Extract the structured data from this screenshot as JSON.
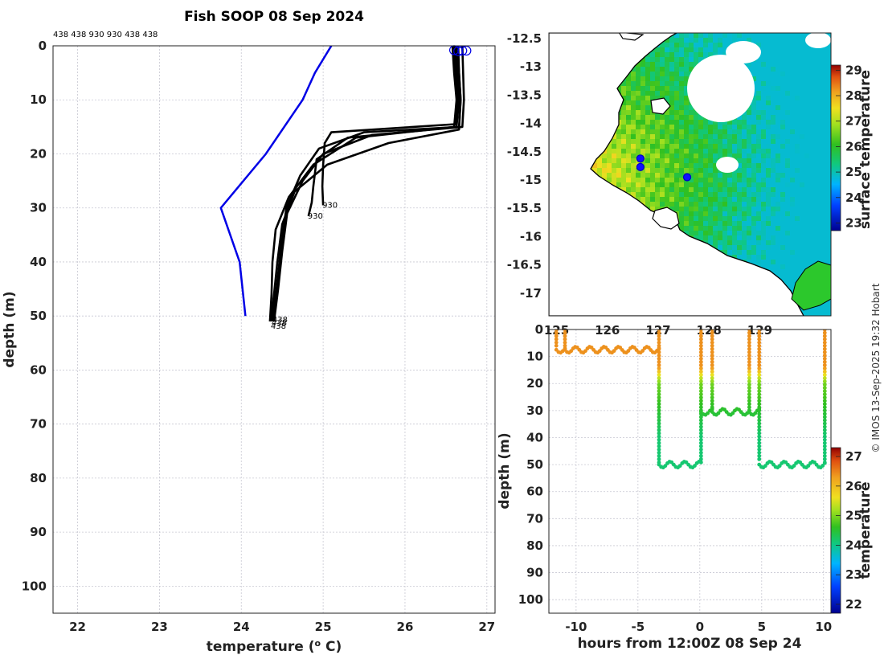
{
  "chart_data": [
    {
      "id": "profile",
      "type": "line",
      "title": "Fish SOOP 08 Sep 2024",
      "xlabel": "temperature (",
      "xlabel_sup": "o",
      "xlabel_unit": " C)",
      "ylabel": "depth (m)",
      "xlim": [
        21.7,
        27.1
      ],
      "ylim": [
        105,
        0
      ],
      "xticks": [
        22,
        23,
        24,
        25,
        26,
        27
      ],
      "yticks": [
        0,
        10,
        20,
        30,
        40,
        50,
        60,
        70,
        80,
        90,
        100
      ],
      "grid": true,
      "top_labels": "438 438 930 930 438 438",
      "climatology_color": "#0000e6",
      "climatology": {
        "temperature": [
          25.1,
          24.9,
          24.75,
          24.3,
          23.75,
          23.98,
          24.05
        ],
        "depth": [
          0,
          5,
          10,
          20,
          30,
          40,
          50
        ]
      },
      "profiles": [
        {
          "id": "438",
          "temperature": [
            26.65,
            26.66,
            26.68,
            26.66,
            25.5,
            24.95,
            24.72,
            24.55,
            24.48,
            24.43,
            24.38
          ],
          "depth": [
            0,
            5,
            10,
            15,
            16,
            19,
            24,
            30,
            38,
            45,
            51
          ]
        },
        {
          "id": "438",
          "temperature": [
            26.7,
            26.71,
            26.72,
            26.7,
            25.6,
            25.0,
            24.75,
            24.56,
            24.5,
            24.45,
            24.4
          ],
          "depth": [
            0,
            5,
            10,
            15,
            16.5,
            20,
            25,
            31,
            38,
            45,
            51
          ]
        },
        {
          "id": "930",
          "temperature": [
            26.6,
            26.62,
            26.64,
            26.62,
            25.1,
            25.02,
            25.0,
            24.99,
            25.0
          ],
          "depth": [
            0,
            5,
            10,
            14.5,
            16,
            18,
            22,
            26,
            29.5
          ]
        },
        {
          "id": "930",
          "temperature": [
            26.62,
            26.64,
            26.66,
            26.63,
            25.3,
            24.92,
            24.88,
            24.86,
            24.82
          ],
          "depth": [
            0,
            5,
            10,
            15,
            17,
            21,
            26,
            29,
            31.5
          ]
        },
        {
          "id": "438",
          "temperature": [
            26.58,
            26.6,
            26.63,
            26.6,
            25.4,
            24.88,
            24.58,
            24.42,
            24.38,
            24.37,
            24.35
          ],
          "depth": [
            0,
            5,
            10,
            15,
            17,
            22,
            28,
            34,
            40,
            46,
            51
          ]
        },
        {
          "id": "438",
          "temperature": [
            26.64,
            26.66,
            26.68,
            26.66,
            25.8,
            25.05,
            24.65,
            24.5,
            24.44,
            24.4,
            24.36
          ],
          "depth": [
            0,
            5,
            10,
            15.5,
            18,
            22,
            27,
            33,
            40,
            46,
            51
          ]
        }
      ],
      "end_labels": [
        {
          "text": "930",
          "temperature": 24.98,
          "depth": 29.5
        },
        {
          "text": "930",
          "temperature": 24.8,
          "depth": 31.5
        },
        {
          "text": "438",
          "temperature": 24.37,
          "depth": 50.7
        },
        {
          "text": "438",
          "temperature": 24.36,
          "depth": 51.3
        },
        {
          "text": "438",
          "temperature": 24.35,
          "depth": 51.9
        }
      ],
      "surface_markers": [
        {
          "temperature": 26.6,
          "depth": 0.8
        },
        {
          "temperature": 26.65,
          "depth": 1.0
        },
        {
          "temperature": 26.7,
          "depth": 0.9
        },
        {
          "temperature": 26.75,
          "depth": 0.9
        }
      ]
    },
    {
      "id": "map",
      "type": "heatmap",
      "xlim": [
        124.85,
        130.4
      ],
      "ylim": [
        -17.4,
        -12.4
      ],
      "xticks": [
        125,
        126,
        127,
        128,
        129
      ],
      "yticks": [
        -12.5,
        -13,
        -13.5,
        -14,
        -14.5,
        -15,
        -15.5,
        -16,
        -16.5,
        -17
      ],
      "colorbar_label": "surface temperature",
      "colorbar_ticks": [
        23,
        24,
        25,
        26,
        27,
        28,
        29
      ],
      "colorbar_range": [
        22.7,
        29.2
      ],
      "ship_positions": [
        {
          "lon": 126.65,
          "lat": -14.62
        },
        {
          "lon": 126.65,
          "lat": -14.77
        },
        {
          "lon": 127.57,
          "lat": -14.95
        }
      ]
    },
    {
      "id": "timeseries",
      "type": "scatter",
      "xlabel": "hours from 12:00Z 08 Sep 24",
      "ylabel": "depth (m)",
      "xlim": [
        -12.2,
        10.6
      ],
      "ylim": [
        105,
        0
      ],
      "xticks": [
        -10,
        -5,
        0,
        5,
        10
      ],
      "yticks": [
        0,
        10,
        20,
        30,
        40,
        50,
        60,
        70,
        80,
        90,
        100
      ],
      "colorbar_label": "temperature",
      "colorbar_ticks": [
        22,
        23,
        24,
        25,
        26,
        27
      ],
      "colorbar_range": [
        21.7,
        27.3
      ],
      "casts": [
        {
          "hour": -11.6,
          "max_depth": 7
        },
        {
          "hour": -10.9,
          "max_depth": 7
        },
        {
          "hour": -3.3,
          "max_depth": 50
        },
        {
          "hour": 0.1,
          "max_depth": 49
        },
        {
          "hour": 1.0,
          "max_depth": 29
        },
        {
          "hour": 4.0,
          "max_depth": 31
        },
        {
          "hour": 4.8,
          "max_depth": 49
        },
        {
          "hour": 10.1,
          "max_depth": 50
        }
      ]
    }
  ],
  "credit": "© IMOS 13-Sep-2025 19:32 Hobart"
}
